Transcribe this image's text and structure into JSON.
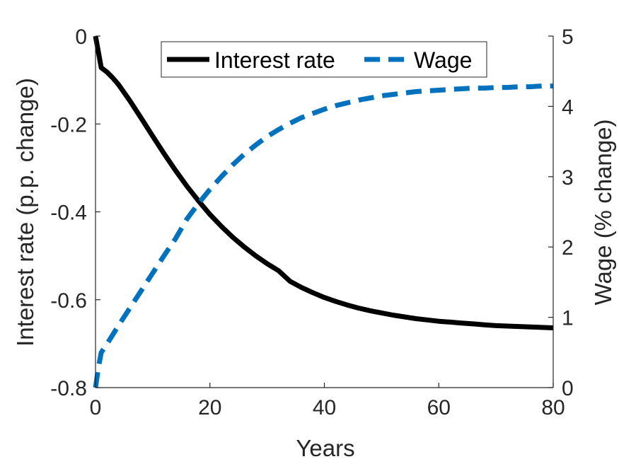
{
  "chart_data": {
    "type": "line",
    "xlabel": "Years",
    "x_ticks": [
      "0",
      "20",
      "40",
      "60",
      "80"
    ],
    "xlim": [
      0,
      80
    ],
    "y_left": {
      "label": "Interest rate (p.p. change)",
      "ticks": [
        "0",
        "-0.2",
        "-0.4",
        "-0.6",
        "-0.8"
      ],
      "lim": [
        -0.8,
        0
      ]
    },
    "y_right": {
      "label": "Wage (% change)",
      "ticks": [
        "5",
        "4",
        "3",
        "2",
        "1",
        "0"
      ],
      "lim": [
        0,
        5
      ]
    },
    "legend_position": "top",
    "grid": false,
    "series": [
      {
        "name": "Interest rate",
        "axis": "left",
        "style": "solid",
        "color": "#000000",
        "x": [
          0,
          1,
          2,
          3,
          4,
          6,
          8,
          10,
          12,
          14,
          16,
          18,
          20,
          22,
          24,
          26,
          28,
          30,
          32,
          34,
          36,
          38,
          40,
          42,
          44,
          46,
          48,
          50,
          52,
          54,
          56,
          58,
          60,
          62,
          64,
          66,
          68,
          70,
          72,
          74,
          76,
          78,
          80
        ],
        "values": [
          0,
          -0.072,
          -0.082,
          -0.095,
          -0.11,
          -0.147,
          -0.187,
          -0.228,
          -0.268,
          -0.306,
          -0.342,
          -0.375,
          -0.406,
          -0.433,
          -0.458,
          -0.48,
          -0.5,
          -0.518,
          -0.534,
          -0.558,
          -0.572,
          -0.584,
          -0.595,
          -0.604,
          -0.612,
          -0.619,
          -0.625,
          -0.63,
          -0.635,
          -0.639,
          -0.643,
          -0.646,
          -0.649,
          -0.651,
          -0.653,
          -0.655,
          -0.657,
          -0.659,
          -0.66,
          -0.661,
          -0.662,
          -0.663,
          -0.664
        ]
      },
      {
        "name": "Wage",
        "axis": "right",
        "style": "dashed",
        "color": "#0072BD",
        "x": [
          0,
          0.5,
          1,
          2,
          4,
          6,
          8,
          10,
          12,
          14,
          16,
          18,
          20,
          22,
          24,
          26,
          28,
          30,
          32,
          34,
          36,
          38,
          40,
          42,
          44,
          46,
          48,
          50,
          52,
          54,
          56,
          58,
          60,
          62,
          64,
          66,
          68,
          70,
          72,
          74,
          76,
          78,
          80
        ],
        "values": [
          0,
          0.28,
          0.5,
          0.62,
          0.88,
          1.13,
          1.38,
          1.63,
          1.88,
          2.12,
          2.4,
          2.62,
          2.82,
          3.0,
          3.17,
          3.32,
          3.45,
          3.57,
          3.67,
          3.76,
          3.84,
          3.9,
          3.96,
          4.01,
          4.05,
          4.09,
          4.12,
          4.15,
          4.17,
          4.19,
          4.21,
          4.22,
          4.23,
          4.24,
          4.25,
          4.26,
          4.26,
          4.27,
          4.27,
          4.28,
          4.28,
          4.29,
          4.29
        ]
      }
    ]
  }
}
